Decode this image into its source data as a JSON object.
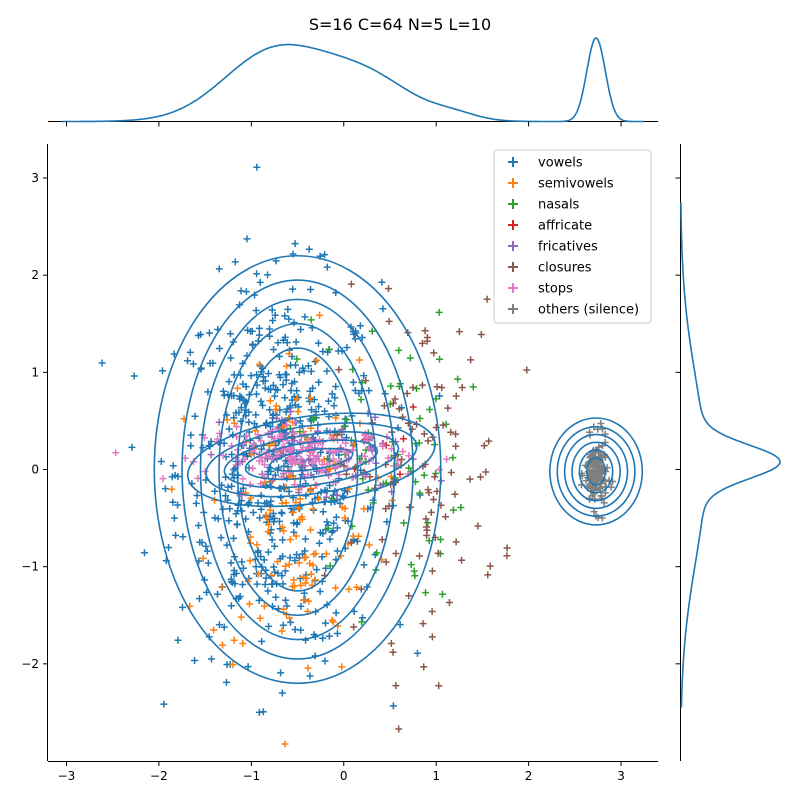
{
  "chart_data": {
    "type": "scatter",
    "title": "S=16 C=64 N=5 L=10",
    "xlabel": "",
    "ylabel": "",
    "xlim": [
      -3.2,
      3.4
    ],
    "ylim": [
      -3.0,
      3.35
    ],
    "x_ticks": [
      -3,
      -2,
      -1,
      0,
      1,
      2,
      3
    ],
    "y_ticks": [
      -2,
      -1,
      0,
      1,
      2,
      3
    ],
    "legend_position": "top-right",
    "marker": "+",
    "series": [
      {
        "name": "vowels",
        "color": "#1f77b4",
        "count": 620,
        "center": [
          -0.7,
          0.0
        ],
        "spread": [
          0.55,
          0.95
        ]
      },
      {
        "name": "semivowels",
        "color": "#ff7f0e",
        "count": 150,
        "center": [
          -0.55,
          -0.4
        ],
        "spread": [
          0.45,
          0.85
        ]
      },
      {
        "name": "nasals",
        "color": "#2ca02c",
        "count": 80,
        "center": [
          0.4,
          0.1
        ],
        "spread": [
          0.45,
          0.75
        ]
      },
      {
        "name": "affricate",
        "color": "#d62728",
        "count": 6,
        "center": [
          0.5,
          0.0
        ],
        "spread": [
          0.3,
          0.3
        ]
      },
      {
        "name": "fricatives",
        "color": "#9467bd",
        "count": 60,
        "center": [
          -0.2,
          0.12
        ],
        "spread": [
          0.55,
          0.25
        ]
      },
      {
        "name": "closures",
        "color": "#8c564b",
        "count": 110,
        "center": [
          0.8,
          0.0
        ],
        "spread": [
          0.45,
          0.85
        ]
      },
      {
        "name": "stops",
        "color": "#e377c2",
        "count": 160,
        "center": [
          -0.4,
          0.15
        ],
        "spread": [
          0.55,
          0.14
        ]
      },
      {
        "name": "others (silence)",
        "color": "#7f7f7f",
        "count": 150,
        "center": [
          2.73,
          -0.05
        ],
        "spread": [
          0.06,
          0.18
        ]
      }
    ],
    "joint_kde": [
      {
        "center": [
          -0.5,
          0.0
        ],
        "levels": [
          {
            "rx": 1.55,
            "ry": 2.2,
            "angle": 0
          },
          {
            "rx": 1.25,
            "ry": 1.95,
            "angle": 0
          },
          {
            "rx": 1.05,
            "ry": 1.75,
            "angle": 0
          },
          {
            "rx": 0.85,
            "ry": 1.5,
            "angle": 0
          },
          {
            "rx": 0.65,
            "ry": 1.25,
            "angle": 0
          }
        ]
      },
      {
        "center": [
          -0.35,
          0.1
        ],
        "levels": [
          {
            "rx": 1.35,
            "ry": 0.45,
            "angle": -8
          },
          {
            "rx": 1.15,
            "ry": 0.35,
            "angle": -8
          },
          {
            "rx": 0.95,
            "ry": 0.26,
            "angle": -8
          },
          {
            "rx": 0.72,
            "ry": 0.18,
            "angle": -8
          },
          {
            "rx": 0.45,
            "ry": 0.1,
            "angle": -8
          }
        ]
      },
      {
        "center": [
          2.73,
          -0.02
        ],
        "levels": [
          {
            "rx": 0.5,
            "ry": 0.55,
            "angle": 0
          },
          {
            "rx": 0.42,
            "ry": 0.46,
            "angle": 0
          },
          {
            "rx": 0.34,
            "ry": 0.38,
            "angle": 0
          },
          {
            "rx": 0.26,
            "ry": 0.3,
            "angle": 0
          },
          {
            "rx": 0.18,
            "ry": 0.22,
            "angle": 0
          },
          {
            "rx": 0.1,
            "ry": 0.14,
            "angle": 0
          }
        ]
      }
    ],
    "marginal_x": {
      "color": "#1f77b4",
      "components": [
        {
          "mu": -0.75,
          "sigma": 0.55,
          "weight": 0.55
        },
        {
          "mu": 0.25,
          "sigma": 0.5,
          "weight": 0.3
        },
        {
          "mu": 1.2,
          "sigma": 0.25,
          "weight": 0.02
        },
        {
          "mu": 2.73,
          "sigma": 0.1,
          "weight": 0.12
        }
      ]
    },
    "marginal_y": {
      "color": "#1f77b4",
      "components": [
        {
          "mu": 0.08,
          "sigma": 0.17,
          "weight": 0.35
        },
        {
          "mu": 0.0,
          "sigma": 0.95,
          "weight": 0.65
        }
      ]
    }
  }
}
